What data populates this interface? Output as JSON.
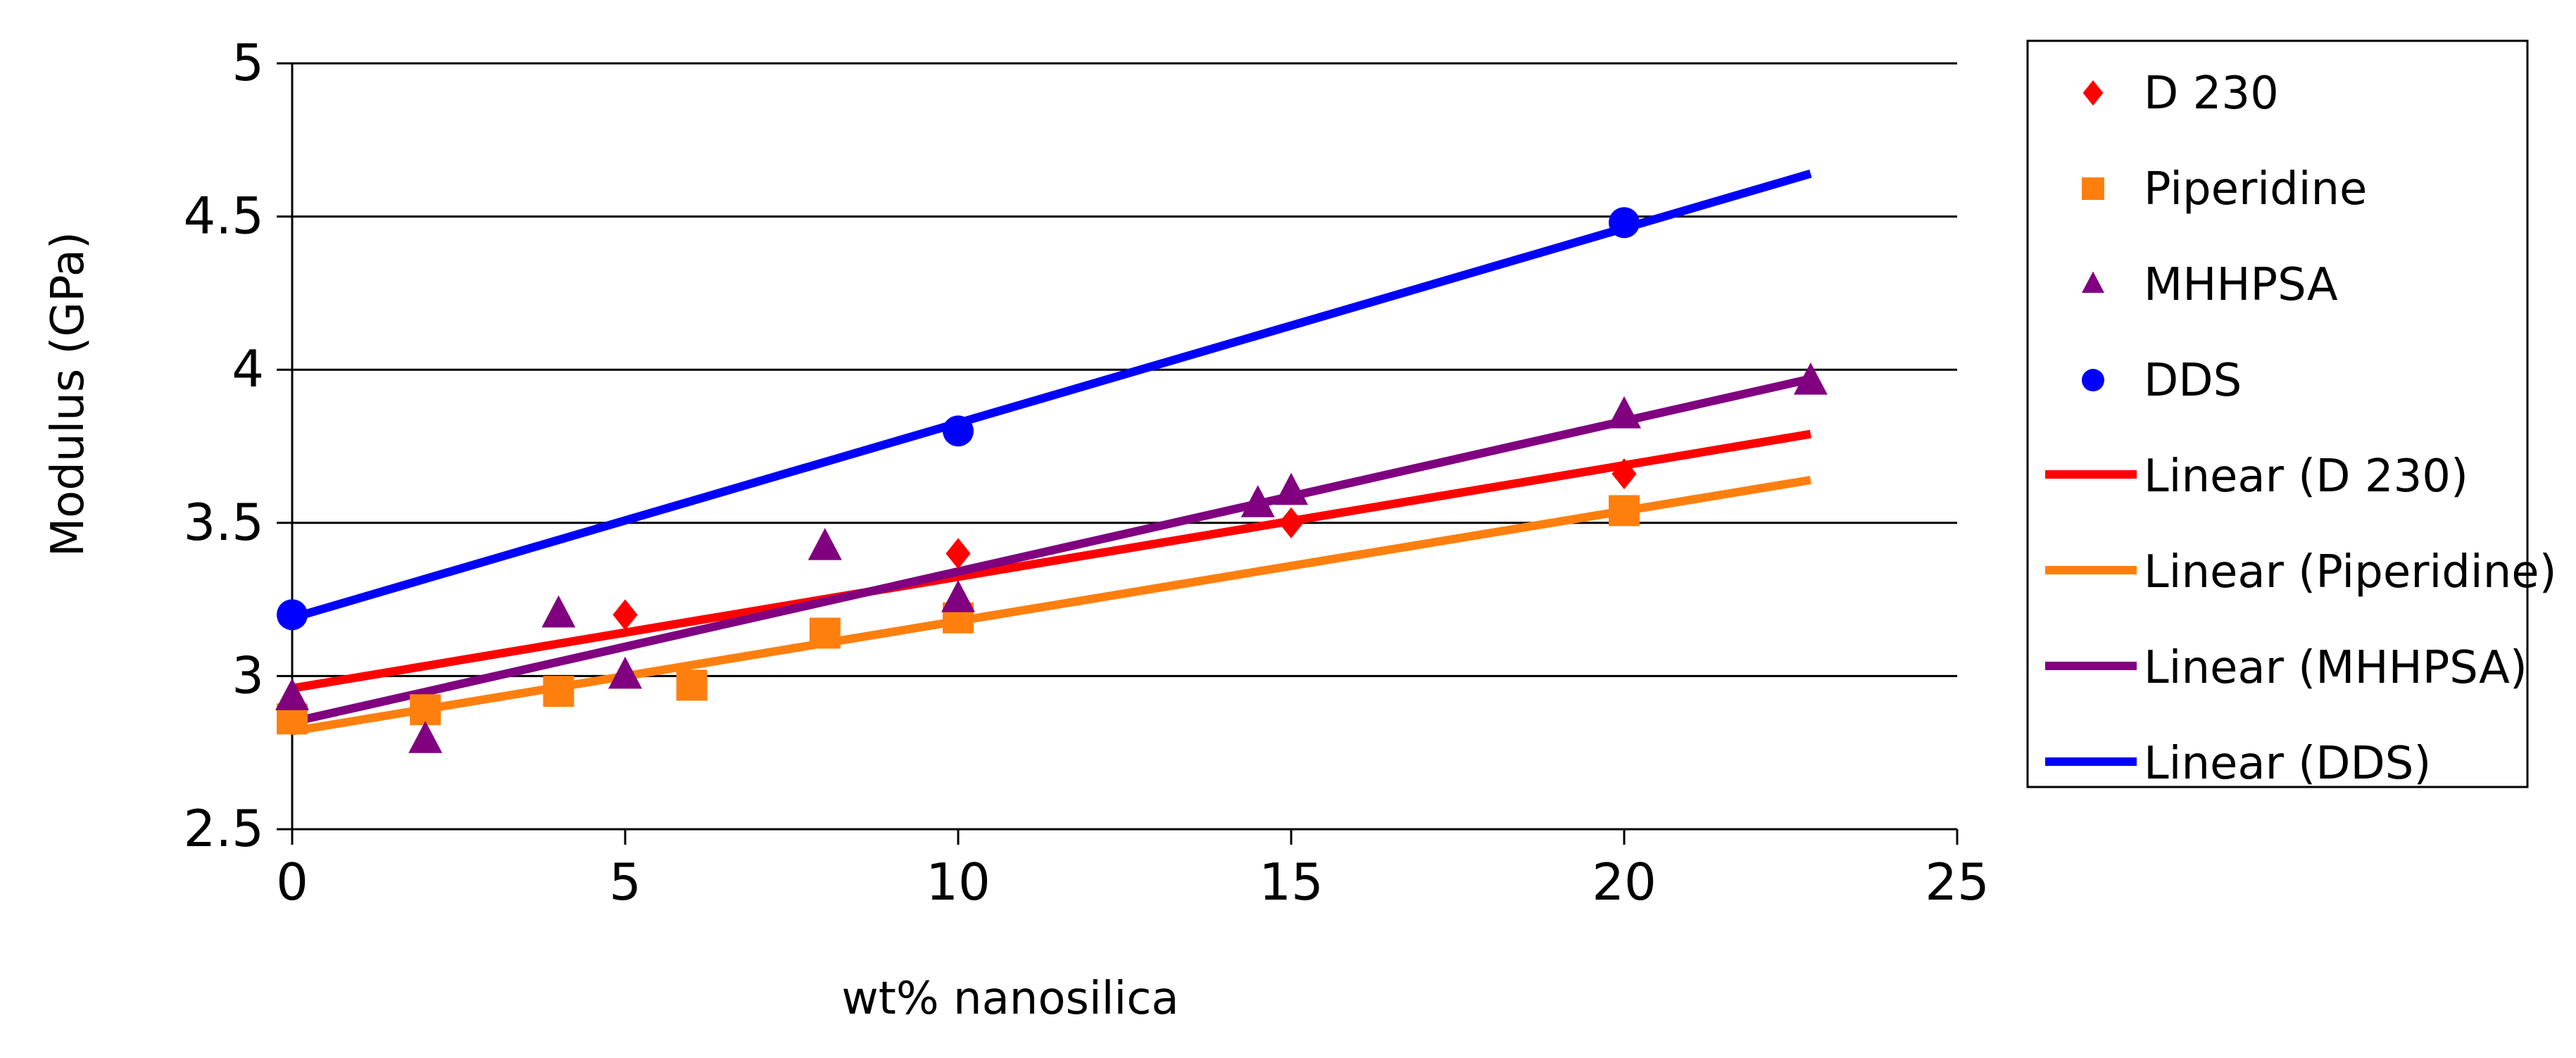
{
  "chart_data": {
    "type": "scatter",
    "title": "",
    "xlabel": "wt% nanosilica",
    "ylabel": "Modulus (GPa)",
    "xlim": [
      0,
      25
    ],
    "ylim": [
      2.5,
      5
    ],
    "x_ticks": [
      "0",
      "5",
      "10",
      "15",
      "20",
      "25"
    ],
    "y_ticks": [
      "2.5",
      "3",
      "3.5",
      "4",
      "4.5",
      "5"
    ],
    "gridlines": "horizontal",
    "legend_position": "right",
    "series": [
      {
        "name": "D 230",
        "marker": "diamond",
        "color": "#ff0000",
        "points": [
          [
            0,
            2.9
          ],
          [
            5,
            3.2
          ],
          [
            10,
            3.4
          ],
          [
            15,
            3.5
          ],
          [
            20,
            3.66
          ]
        ]
      },
      {
        "name": "Piperidine",
        "marker": "square",
        "color": "#ff7f0e",
        "points": [
          [
            0,
            2.86
          ],
          [
            2,
            2.89
          ],
          [
            4,
            2.95
          ],
          [
            6,
            2.97
          ],
          [
            8,
            3.14
          ],
          [
            10,
            3.19
          ],
          [
            20,
            3.54
          ]
        ]
      },
      {
        "name": "MHHPSA",
        "marker": "triangle",
        "color": "#800080",
        "points": [
          [
            0,
            2.93
          ],
          [
            2,
            2.79
          ],
          [
            4,
            3.2
          ],
          [
            5,
            3.0
          ],
          [
            8,
            3.42
          ],
          [
            10,
            3.25
          ],
          [
            14.5,
            3.56
          ],
          [
            15,
            3.6
          ],
          [
            20,
            3.85
          ],
          [
            22.8,
            3.96
          ]
        ]
      },
      {
        "name": "DDS",
        "marker": "circle",
        "color": "#0000ff",
        "points": [
          [
            0,
            3.2
          ],
          [
            10,
            3.8
          ],
          [
            20,
            4.48
          ]
        ]
      }
    ],
    "trendlines": [
      {
        "name": "Linear (D 230)",
        "color": "#ff0000",
        "x": [
          0,
          22.8
        ],
        "y": [
          2.96,
          3.79
        ]
      },
      {
        "name": "Linear (Piperidine)",
        "color": "#ff7f0e",
        "x": [
          0,
          22.8
        ],
        "y": [
          2.82,
          3.64
        ]
      },
      {
        "name": "Linear (MHHPSA)",
        "color": "#800080",
        "x": [
          0,
          22.8
        ],
        "y": [
          2.85,
          3.97
        ]
      },
      {
        "name": "Linear (DDS)",
        "color": "#0000ff",
        "x": [
          0,
          22.8
        ],
        "y": [
          3.19,
          4.64
        ]
      }
    ]
  }
}
